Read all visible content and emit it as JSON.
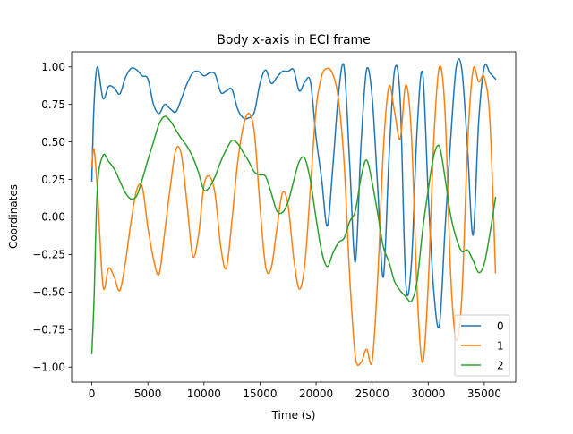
{
  "chart_data": {
    "type": "line",
    "title": "Body x-axis in ECI frame",
    "xlabel": "Time (s)",
    "ylabel": "Coordinates",
    "xlim": [
      -1800,
      37800
    ],
    "ylim": [
      -1.1,
      1.1
    ],
    "xticks": [
      0,
      5000,
      10000,
      15000,
      20000,
      25000,
      30000,
      35000
    ],
    "xtick_labels": [
      "0",
      "5000",
      "10000",
      "15000",
      "20000",
      "25000",
      "30000",
      "35000"
    ],
    "yticks": [
      -1.0,
      -0.75,
      -0.5,
      -0.25,
      0.0,
      0.25,
      0.5,
      0.75,
      1.0
    ],
    "ytick_labels": [
      "−1.00",
      "−0.75",
      "−0.50",
      "−0.25",
      "0.00",
      "0.25",
      "0.50",
      "0.75",
      "1.00"
    ],
    "grid": false,
    "legend_position": "lower right",
    "series": [
      {
        "name": "0",
        "color": "#1f77b4",
        "x": [
          0,
          200,
          500,
          1000,
          1500,
          2000,
          2500,
          3000,
          3500,
          4000,
          4500,
          5000,
          5500,
          6000,
          6500,
          7000,
          7500,
          8000,
          8500,
          9000,
          9500,
          10000,
          10500,
          11000,
          11500,
          12000,
          12500,
          13000,
          13500,
          14000,
          14500,
          15000,
          15500,
          16000,
          16500,
          17000,
          17500,
          18000,
          18500,
          19000,
          19500,
          20000,
          20500,
          21000,
          21500,
          22000,
          22500,
          23000,
          23500,
          24000,
          24500,
          25000,
          25500,
          26000,
          26500,
          27000,
          27500,
          28000,
          28500,
          29000,
          29500,
          30000,
          30500,
          31000,
          31500,
          32000,
          32500,
          33000,
          33500,
          34000,
          34500,
          35000,
          35500,
          36000
        ],
        "values": [
          0.24,
          0.75,
          1.0,
          0.79,
          0.87,
          0.86,
          0.82,
          0.93,
          0.99,
          0.98,
          0.94,
          0.92,
          0.75,
          0.69,
          0.75,
          0.72,
          0.7,
          0.79,
          0.89,
          0.96,
          0.97,
          0.94,
          0.96,
          0.95,
          0.83,
          0.84,
          0.85,
          0.72,
          0.66,
          0.66,
          0.7,
          0.89,
          0.98,
          0.89,
          0.93,
          0.97,
          0.97,
          0.98,
          0.84,
          0.9,
          0.9,
          0.53,
          0.25,
          -0.06,
          0.34,
          0.82,
          1.0,
          0.35,
          -0.3,
          0.47,
          0.98,
          0.8,
          0.19,
          -0.4,
          0.39,
          0.98,
          0.78,
          -0.44,
          -0.31,
          0.57,
          0.96,
          0.15,
          -0.5,
          -0.72,
          -0.08,
          0.52,
          1.0,
          0.98,
          0.46,
          -0.12,
          0.64,
          1.0,
          0.96,
          0.92
        ]
      },
      {
        "name": "1",
        "color": "#ff7f0e",
        "x": [
          0,
          200,
          500,
          1000,
          1500,
          2000,
          2500,
          3000,
          3500,
          4000,
          4500,
          5000,
          5500,
          6000,
          6500,
          7000,
          7500,
          8000,
          8500,
          9000,
          9500,
          10000,
          10500,
          11000,
          11500,
          12000,
          12500,
          13000,
          13500,
          14000,
          14500,
          15000,
          15500,
          16000,
          16500,
          17000,
          17500,
          18000,
          18500,
          19000,
          19500,
          20000,
          20500,
          21000,
          21500,
          22000,
          22500,
          23000,
          23500,
          24000,
          24500,
          25000,
          25500,
          26000,
          26500,
          27000,
          27500,
          28000,
          28500,
          29000,
          29500,
          30000,
          30500,
          31000,
          31500,
          32000,
          32500,
          33000,
          33500,
          34000,
          34500,
          35000,
          35500,
          36000
        ],
        "values": [
          0.34,
          0.45,
          0.18,
          -0.46,
          -0.34,
          -0.4,
          -0.49,
          -0.3,
          -0.03,
          0.18,
          0.2,
          -0.07,
          -0.28,
          -0.38,
          -0.1,
          0.2,
          0.45,
          0.41,
          0.08,
          -0.26,
          -0.13,
          0.21,
          0.27,
          0.15,
          -0.2,
          -0.34,
          -0.02,
          0.36,
          0.6,
          0.69,
          0.56,
          0.07,
          -0.33,
          -0.34,
          -0.08,
          0.16,
          0.08,
          -0.27,
          -0.48,
          -0.31,
          0.2,
          0.72,
          0.94,
          0.99,
          0.95,
          0.78,
          0.36,
          -0.4,
          -0.93,
          -0.97,
          -0.88,
          -0.96,
          -0.4,
          0.45,
          0.87,
          0.7,
          0.52,
          0.88,
          0.55,
          -0.48,
          -0.97,
          -0.45,
          0.52,
          1.0,
          0.7,
          -0.38,
          -0.82,
          -0.53,
          0.47,
          0.98,
          0.9,
          0.93,
          0.64,
          -0.37
        ]
      },
      {
        "name": "2",
        "color": "#2ca02c",
        "x": [
          0,
          200,
          500,
          1000,
          1500,
          2000,
          2500,
          3000,
          3500,
          4000,
          4500,
          5000,
          5500,
          6000,
          6500,
          7000,
          7500,
          8000,
          8500,
          9000,
          9500,
          10000,
          10500,
          11000,
          11500,
          12000,
          12500,
          13000,
          13500,
          14000,
          14500,
          15000,
          15500,
          16000,
          16500,
          17000,
          17500,
          18000,
          18500,
          19000,
          19500,
          20000,
          20500,
          21000,
          21500,
          22000,
          22500,
          23000,
          23500,
          24000,
          24500,
          25000,
          25500,
          26000,
          26500,
          27000,
          27500,
          28000,
          28500,
          29000,
          29500,
          30000,
          30500,
          31000,
          31500,
          32000,
          32500,
          33000,
          33500,
          34000,
          34500,
          35000,
          35500,
          36000
        ],
        "values": [
          -0.91,
          -0.55,
          0.2,
          0.41,
          0.37,
          0.32,
          0.24,
          0.16,
          0.12,
          0.14,
          0.25,
          0.38,
          0.5,
          0.62,
          0.67,
          0.64,
          0.58,
          0.52,
          0.47,
          0.4,
          0.3,
          0.18,
          0.2,
          0.27,
          0.37,
          0.45,
          0.51,
          0.49,
          0.43,
          0.37,
          0.3,
          0.28,
          0.27,
          0.16,
          0.04,
          0.03,
          0.1,
          0.24,
          0.37,
          0.39,
          0.24,
          -0.01,
          -0.23,
          -0.33,
          -0.24,
          -0.17,
          -0.14,
          -0.03,
          0.04,
          0.26,
          0.38,
          0.23,
          0.02,
          -0.2,
          -0.3,
          -0.43,
          -0.49,
          -0.53,
          -0.56,
          -0.43,
          -0.09,
          0.18,
          0.41,
          0.47,
          0.26,
          0.01,
          -0.14,
          -0.23,
          -0.22,
          -0.29,
          -0.37,
          -0.31,
          -0.11,
          0.13
        ]
      }
    ]
  }
}
